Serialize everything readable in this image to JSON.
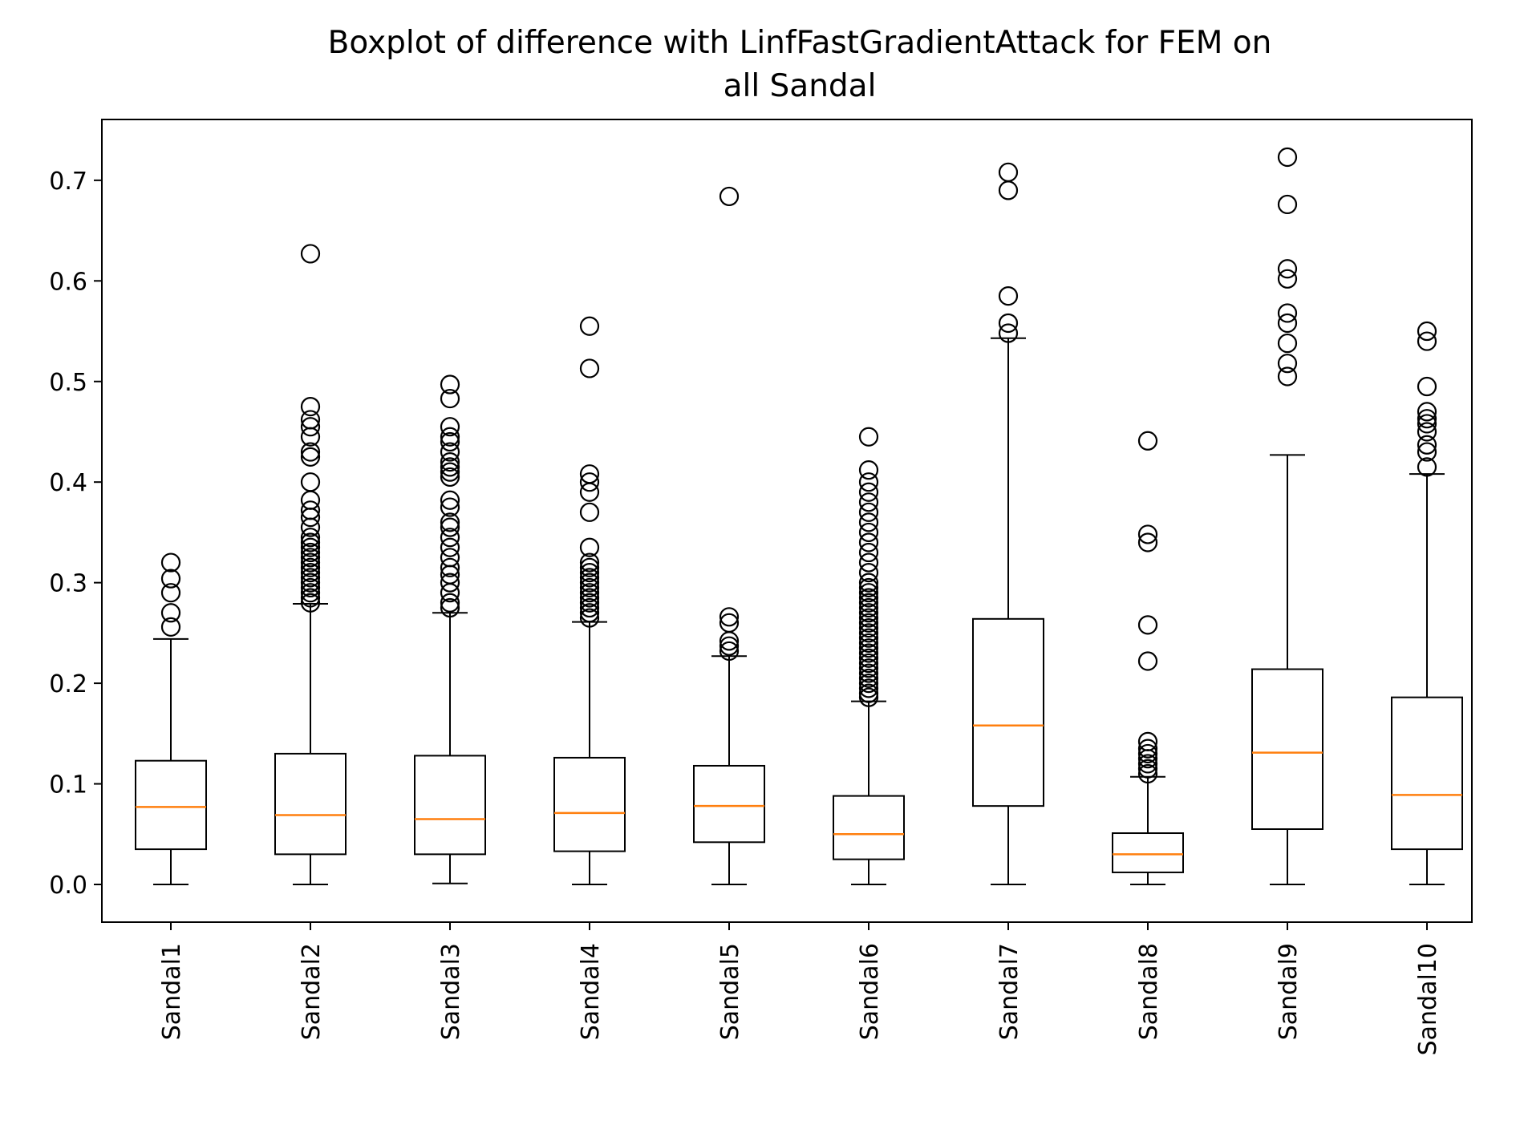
{
  "chart_data": {
    "type": "boxplot",
    "title_lines": [
      "Boxplot of difference with LinfFastGradientAttack for FEM on",
      "all Sandal"
    ],
    "xlabel": "",
    "ylabel": "",
    "ylim": [
      -0.036,
      0.76
    ],
    "yticks": [
      "0.0",
      "0.1",
      "0.2",
      "0.3",
      "0.4",
      "0.5",
      "0.6",
      "0.7"
    ],
    "ytick_values": [
      0.0,
      0.1,
      0.2,
      0.3,
      0.4,
      0.5,
      0.6,
      0.7
    ],
    "categories": [
      "Sandal1",
      "Sandal2",
      "Sandal3",
      "Sandal4",
      "Sandal5",
      "Sandal6",
      "Sandal7",
      "Sandal8",
      "Sandal9",
      "Sandal10"
    ],
    "grid": false,
    "colors": {
      "box": "#000000",
      "median": "#ff7f0e",
      "outlier": "#000000"
    },
    "boxes": [
      {
        "label": "Sandal1",
        "whisker_low": 0.0,
        "q1": 0.035,
        "median": 0.077,
        "q3": 0.123,
        "whisker_high": 0.244,
        "outliers": [
          0.256,
          0.27,
          0.29,
          0.304,
          0.32
        ]
      },
      {
        "label": "Sandal2",
        "whisker_low": 0.0,
        "q1": 0.03,
        "median": 0.069,
        "q3": 0.13,
        "whisker_high": 0.279,
        "outliers": [
          0.28,
          0.285,
          0.29,
          0.295,
          0.3,
          0.305,
          0.31,
          0.315,
          0.32,
          0.325,
          0.33,
          0.335,
          0.34,
          0.345,
          0.355,
          0.365,
          0.372,
          0.382,
          0.4,
          0.425,
          0.43,
          0.445,
          0.455,
          0.462,
          0.475,
          0.627
        ]
      },
      {
        "label": "Sandal3",
        "whisker_low": 0.001,
        "q1": 0.03,
        "median": 0.065,
        "q3": 0.128,
        "whisker_high": 0.27,
        "outliers": [
          0.275,
          0.28,
          0.29,
          0.3,
          0.308,
          0.315,
          0.325,
          0.335,
          0.345,
          0.355,
          0.36,
          0.375,
          0.382,
          0.405,
          0.41,
          0.415,
          0.42,
          0.43,
          0.44,
          0.445,
          0.455,
          0.483,
          0.497
        ]
      },
      {
        "label": "Sandal4",
        "whisker_low": 0.0,
        "q1": 0.033,
        "median": 0.071,
        "q3": 0.126,
        "whisker_high": 0.261,
        "outliers": [
          0.265,
          0.27,
          0.275,
          0.28,
          0.285,
          0.29,
          0.295,
          0.3,
          0.305,
          0.31,
          0.315,
          0.32,
          0.335,
          0.37,
          0.39,
          0.4,
          0.408,
          0.513,
          0.555
        ]
      },
      {
        "label": "Sandal5",
        "whisker_low": 0.0,
        "q1": 0.042,
        "median": 0.078,
        "q3": 0.118,
        "whisker_high": 0.227,
        "outliers": [
          0.232,
          0.237,
          0.242,
          0.26,
          0.266,
          0.684
        ]
      },
      {
        "label": "Sandal6",
        "whisker_low": 0.0,
        "q1": 0.025,
        "median": 0.05,
        "q3": 0.088,
        "whisker_high": 0.182,
        "outliers": [
          0.186,
          0.19,
          0.195,
          0.2,
          0.205,
          0.21,
          0.215,
          0.22,
          0.225,
          0.23,
          0.235,
          0.24,
          0.245,
          0.25,
          0.255,
          0.26,
          0.265,
          0.27,
          0.275,
          0.28,
          0.285,
          0.29,
          0.295,
          0.3,
          0.31,
          0.32,
          0.33,
          0.34,
          0.35,
          0.36,
          0.37,
          0.38,
          0.39,
          0.4,
          0.412,
          0.445
        ]
      },
      {
        "label": "Sandal7",
        "whisker_low": 0.0,
        "q1": 0.078,
        "median": 0.158,
        "q3": 0.264,
        "whisker_high": 0.543,
        "outliers": [
          0.548,
          0.558,
          0.585,
          0.69,
          0.708
        ]
      },
      {
        "label": "Sandal8",
        "whisker_low": 0.0,
        "q1": 0.012,
        "median": 0.03,
        "q3": 0.051,
        "whisker_high": 0.107,
        "outliers": [
          0.11,
          0.115,
          0.12,
          0.125,
          0.13,
          0.135,
          0.142,
          0.222,
          0.258,
          0.34,
          0.348,
          0.441
        ]
      },
      {
        "label": "Sandal9",
        "whisker_low": 0.0,
        "q1": 0.055,
        "median": 0.131,
        "q3": 0.214,
        "whisker_high": 0.427,
        "outliers": [
          0.505,
          0.518,
          0.538,
          0.558,
          0.568,
          0.602,
          0.612,
          0.676,
          0.723
        ]
      },
      {
        "label": "Sandal10",
        "whisker_low": 0.0,
        "q1": 0.035,
        "median": 0.089,
        "q3": 0.186,
        "whisker_high": 0.408,
        "outliers": [
          0.415,
          0.43,
          0.437,
          0.45,
          0.458,
          0.463,
          0.47,
          0.495,
          0.54,
          0.55
        ]
      }
    ]
  }
}
